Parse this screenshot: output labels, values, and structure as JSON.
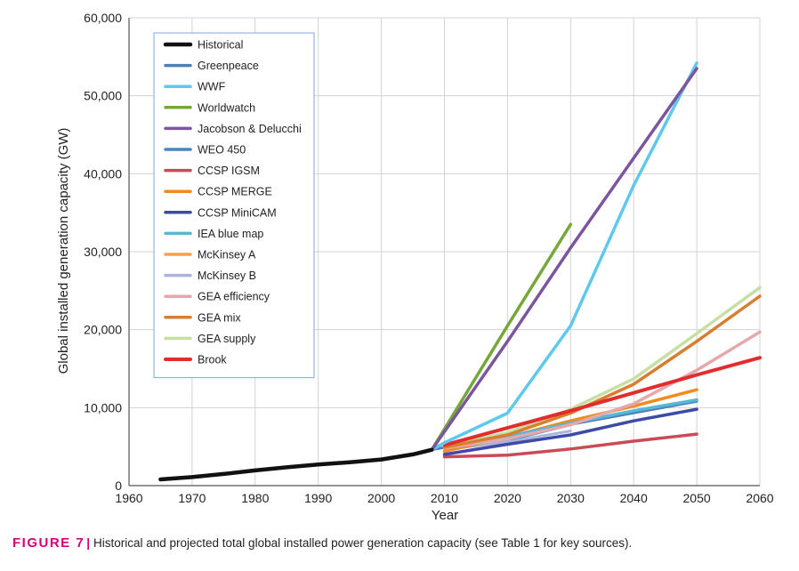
{
  "chart_data": {
    "type": "line",
    "xlabel": "Year",
    "ylabel": "Global installed generation capacity (GW)",
    "xlim": [
      1960,
      2060
    ],
    "ylim": [
      0,
      60000
    ],
    "x_ticks": [
      "1960",
      "1970",
      "1980",
      "1990",
      "2000",
      "2010",
      "2020",
      "2030",
      "2040",
      "2050",
      "2060"
    ],
    "y_ticks": [
      "0",
      "10,000",
      "20,000",
      "30,000",
      "40,000",
      "50,000",
      "60,000"
    ],
    "grid": true,
    "legend_position": "top-left",
    "series": [
      {
        "name": "Historical",
        "color": "#111111",
        "width": 4.5,
        "points": [
          [
            1965,
            800
          ],
          [
            1970,
            1100
          ],
          [
            1975,
            1500
          ],
          [
            1980,
            1950
          ],
          [
            1985,
            2350
          ],
          [
            1990,
            2700
          ],
          [
            1995,
            3000
          ],
          [
            2000,
            3350
          ],
          [
            2005,
            4000
          ],
          [
            2008,
            4600
          ]
        ]
      },
      {
        "name": "Greenpeace",
        "color": "#4f7fb8",
        "width": 3,
        "points": [
          [
            2008,
            4600
          ],
          [
            2050,
            10800
          ]
        ]
      },
      {
        "name": "WWF",
        "color": "#5ec8ee",
        "width": 3.5,
        "points": [
          [
            2008,
            4600
          ],
          [
            2010,
            5500
          ],
          [
            2020,
            9300
          ],
          [
            2030,
            20500
          ],
          [
            2040,
            38500
          ],
          [
            2050,
            54200
          ]
        ]
      },
      {
        "name": "Worldwatch",
        "color": "#76a73a",
        "width": 3.5,
        "points": [
          [
            2008,
            4600
          ],
          [
            2020,
            20500
          ],
          [
            2030,
            33500
          ]
        ]
      },
      {
        "name": "Jacobson & Delucchi",
        "color": "#7b559e",
        "width": 3.5,
        "points": [
          [
            2008,
            4600
          ],
          [
            2020,
            18500
          ],
          [
            2030,
            30500
          ],
          [
            2040,
            42000
          ],
          [
            2050,
            53500
          ]
        ]
      },
      {
        "name": "WEO 450",
        "color": "#4a86c6",
        "width": 3,
        "points": [
          [
            2010,
            5000
          ],
          [
            2020,
            5800
          ],
          [
            2030,
            7800
          ]
        ]
      },
      {
        "name": "CCSP IGSM",
        "color": "#cc4a57",
        "width": 3.5,
        "points": [
          [
            2010,
            3700
          ],
          [
            2020,
            3900
          ],
          [
            2030,
            4700
          ],
          [
            2040,
            5700
          ],
          [
            2050,
            6600
          ]
        ]
      },
      {
        "name": "CCSP MERGE",
        "color": "#f28a1e",
        "width": 3.5,
        "points": [
          [
            2010,
            4400
          ],
          [
            2020,
            6200
          ],
          [
            2030,
            8300
          ],
          [
            2040,
            10200
          ],
          [
            2050,
            12300
          ]
        ]
      },
      {
        "name": "CCSP MiniCAM",
        "color": "#3e4aa8",
        "width": 3.5,
        "points": [
          [
            2010,
            4000
          ],
          [
            2020,
            5300
          ],
          [
            2030,
            6500
          ],
          [
            2040,
            8300
          ],
          [
            2050,
            9800
          ]
        ]
      },
      {
        "name": "IEA blue map",
        "color": "#56b9d4",
        "width": 3.5,
        "points": [
          [
            2010,
            5000
          ],
          [
            2020,
            6300
          ],
          [
            2030,
            8000
          ],
          [
            2040,
            9600
          ],
          [
            2050,
            11000
          ]
        ]
      },
      {
        "name": "McKinsey A",
        "color": "#f5a04a",
        "width": 3,
        "points": [
          [
            2010,
            4500
          ],
          [
            2020,
            6000
          ],
          [
            2030,
            7800
          ]
        ]
      },
      {
        "name": "McKinsey B",
        "color": "#aab5de",
        "width": 3,
        "points": [
          [
            2010,
            4600
          ],
          [
            2020,
            5600
          ],
          [
            2030,
            7000
          ]
        ]
      },
      {
        "name": "GEA efficiency",
        "color": "#e5a9ad",
        "width": 3.5,
        "points": [
          [
            2010,
            4800
          ],
          [
            2020,
            6000
          ],
          [
            2030,
            7800
          ],
          [
            2040,
            10500
          ],
          [
            2050,
            14800
          ],
          [
            2060,
            19700
          ]
        ]
      },
      {
        "name": "GEA mix",
        "color": "#d77f2e",
        "width": 3.5,
        "points": [
          [
            2010,
            4900
          ],
          [
            2020,
            6500
          ],
          [
            2030,
            9300
          ],
          [
            2040,
            13000
          ],
          [
            2050,
            18500
          ],
          [
            2060,
            24300
          ]
        ]
      },
      {
        "name": "GEA supply",
        "color": "#c8dfa4",
        "width": 3.5,
        "points": [
          [
            2010,
            5000
          ],
          [
            2020,
            6800
          ],
          [
            2030,
            9800
          ],
          [
            2040,
            13700
          ],
          [
            2050,
            19500
          ],
          [
            2060,
            25400
          ]
        ]
      },
      {
        "name": "Brook",
        "color": "#e32c2c",
        "width": 4,
        "points": [
          [
            2010,
            5200
          ],
          [
            2020,
            7400
          ],
          [
            2030,
            9600
          ],
          [
            2040,
            11900
          ],
          [
            2050,
            14200
          ],
          [
            2060,
            16400
          ]
        ]
      }
    ],
    "draw_order": [
      "Greenpeace",
      "WEO 450",
      "McKinsey A",
      "McKinsey B",
      "CCSP MERGE",
      "IEA blue map",
      "GEA efficiency",
      "GEA supply",
      "GEA mix",
      "CCSP IGSM",
      "CCSP MiniCAM",
      "Brook",
      "WWF",
      "Worldwatch",
      "Jacobson & Delucchi",
      "Historical"
    ]
  },
  "caption": {
    "label": "FIGURE 7",
    "separator": "|",
    "text": "Historical and projected total global installed power generation capacity (see Table 1 for key sources)."
  }
}
